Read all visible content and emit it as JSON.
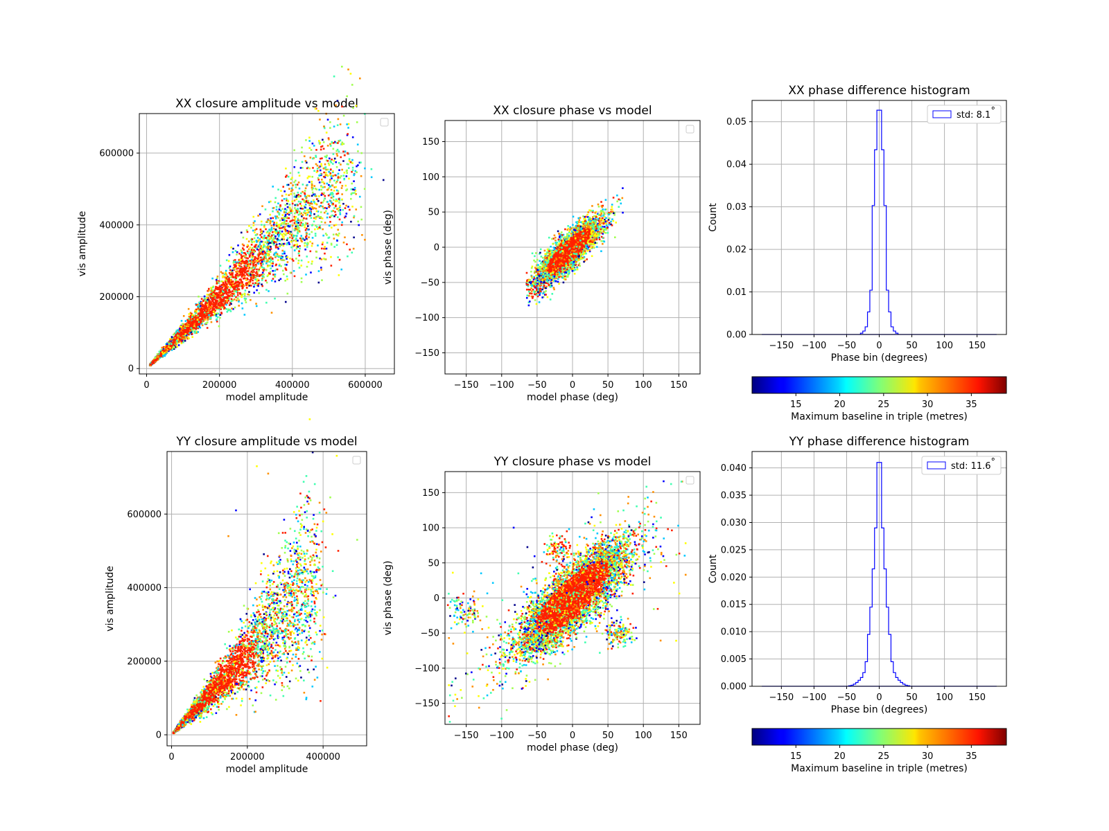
{
  "figure": {
    "colormap": "jet",
    "background": "#ffffff",
    "point_colors": [
      "#00008b",
      "#0000ff",
      "#00c8ff",
      "#40ffb0",
      "#a0ff50",
      "#ffff00",
      "#ff9000",
      "#ff2000"
    ],
    "hist_color": "#0000ff",
    "grid": true
  },
  "chart_data": [
    {
      "id": "xx-amp",
      "type": "scatter",
      "title": "XX closure amplitude vs model",
      "xlabel": "model amplitude",
      "ylabel": "vis amplitude",
      "xlim": [
        -20000,
        680000
      ],
      "ylim": [
        -15000,
        710000
      ],
      "xticks": [
        0,
        200000,
        400000,
        600000
      ],
      "xtick_labels": [
        "0",
        "200000",
        "400000",
        "600000"
      ],
      "yticks": [
        0,
        200000,
        400000,
        600000
      ],
      "ytick_labels": [
        "0",
        "200000",
        "400000",
        "600000"
      ],
      "legend": "top-right (empty)",
      "point_cloud": {
        "trend_slope": 1.0,
        "x_range": [
          10000,
          560000
        ],
        "n_points": 4200,
        "spread_fraction": 0.16,
        "outliers": [
          [
            550000,
            680000
          ],
          [
            580000,
            605000
          ],
          [
            590000,
            600000
          ],
          [
            650000,
            525000
          ],
          [
            590000,
            415000
          ],
          [
            520000,
            400000
          ]
        ]
      }
    },
    {
      "id": "xx-phase",
      "type": "scatter",
      "title": "XX closure phase vs model",
      "xlabel": "model phase (deg)",
      "ylabel": "vis phase (deg)",
      "xlim": [
        -180,
        180
      ],
      "ylim": [
        -180,
        180
      ],
      "xticks": [
        -150,
        -100,
        -50,
        0,
        50,
        100,
        150
      ],
      "xtick_labels": [
        "−150",
        "−100",
        "−50",
        "0",
        "50",
        "100",
        "150"
      ],
      "yticks": [
        -150,
        -100,
        -50,
        0,
        50,
        100,
        150
      ],
      "ytick_labels": [
        "−150",
        "−100",
        "−50",
        "0",
        "50",
        "100",
        "150"
      ],
      "legend": "top-right (empty)",
      "point_cloud": {
        "center": [
          -5,
          -5
        ],
        "x_range": [
          -65,
          75
        ],
        "correlation": 0.85,
        "sigma": 24,
        "n_points": 3600
      }
    },
    {
      "id": "xx-hist",
      "type": "histogram",
      "title": "XX phase difference histogram",
      "xlabel": "Phase bin (degrees)",
      "ylabel": "Count",
      "xlim": [
        -195,
        195
      ],
      "ylim": [
        0,
        0.055
      ],
      "xticks": [
        -150,
        -100,
        -50,
        0,
        50,
        100,
        150
      ],
      "xtick_labels": [
        "−150",
        "−100",
        "−50",
        "0",
        "50",
        "100",
        "150"
      ],
      "yticks": [
        0,
        0.01,
        0.02,
        0.03,
        0.04,
        0.05
      ],
      "ytick_labels": [
        "0.00",
        "0.01",
        "0.02",
        "0.03",
        "0.04",
        "0.05"
      ],
      "legend_label": "std: 8.1$^\\circ$",
      "legend_text": "std: 8.1",
      "legend_position": "top-right",
      "bin_width": 3.6,
      "bin_centers": [
        -27,
        -23.4,
        -19.8,
        -16.2,
        -12.6,
        -9,
        -5.4,
        -1.8,
        1.8,
        5.4,
        9,
        12.6,
        16.2,
        19.8,
        23.4,
        27
      ],
      "values": [
        0.0003,
        0.0008,
        0.0018,
        0.0053,
        0.0104,
        0.0303,
        0.0434,
        0.0527,
        0.0527,
        0.0434,
        0.0303,
        0.0104,
        0.0053,
        0.0018,
        0.0008,
        0.0003
      ]
    },
    {
      "id": "yy-amp",
      "type": "scatter",
      "title": "YY closure amplitude vs model",
      "xlabel": "model amplitude",
      "ylabel": "vis amplitude",
      "xlim": [
        -12000,
        515000
      ],
      "ylim": [
        -30000,
        770000
      ],
      "xticks": [
        0,
        200000,
        400000
      ],
      "xtick_labels": [
        "0",
        "200000",
        "400000"
      ],
      "yticks": [
        0,
        200000,
        400000,
        600000
      ],
      "ytick_labels": [
        "0",
        "200000",
        "400000",
        "600000"
      ],
      "legend": "top-right (empty)",
      "point_cloud": {
        "trend_slope": 1.1,
        "x_range": [
          5000,
          390000
        ],
        "n_points": 4200,
        "spread_fraction": 0.25,
        "outliers": [
          [
            225000,
            730000
          ],
          [
            255000,
            710000
          ],
          [
            170000,
            610000
          ],
          [
            400000,
            580000
          ],
          [
            490000,
            530000
          ],
          [
            150000,
            540000
          ],
          [
            440000,
            500000
          ]
        ]
      }
    },
    {
      "id": "yy-phase",
      "type": "scatter",
      "title": "YY closure phase vs model",
      "xlabel": "model phase (deg)",
      "ylabel": "vis phase (deg)",
      "xlim": [
        -180,
        180
      ],
      "ylim": [
        -180,
        180
      ],
      "xticks": [
        -150,
        -100,
        -50,
        0,
        50,
        100,
        150
      ],
      "xtick_labels": [
        "−150",
        "−100",
        "−50",
        "0",
        "50",
        "100",
        "150"
      ],
      "yticks": [
        -150,
        -100,
        -50,
        0,
        50,
        100,
        150
      ],
      "ytick_labels": [
        "−150",
        "−100",
        "−50",
        "0",
        "50",
        "100",
        "150"
      ],
      "legend": "top-right (empty)",
      "point_cloud": {
        "center": [
          0,
          0
        ],
        "x_range": [
          -175,
          160
        ],
        "correlation": 0.8,
        "sigma": 40,
        "n_points": 5000,
        "clusters": [
          [
            -20,
            70
          ],
          [
            -150,
            -20
          ],
          [
            65,
            -50
          ],
          [
            -45,
            -60
          ],
          [
            50,
            60
          ]
        ]
      }
    },
    {
      "id": "yy-hist",
      "type": "histogram",
      "title": "YY phase difference histogram",
      "xlabel": "Phase bin (degrees)",
      "ylabel": "Count",
      "xlim": [
        -195,
        195
      ],
      "ylim": [
        0,
        0.043
      ],
      "xticks": [
        -150,
        -100,
        -50,
        0,
        50,
        100,
        150
      ],
      "xtick_labels": [
        "−150",
        "−100",
        "−50",
        "0",
        "50",
        "100",
        "150"
      ],
      "yticks": [
        0,
        0.005,
        0.01,
        0.015,
        0.02,
        0.025,
        0.03,
        0.035,
        0.04
      ],
      "ytick_labels": [
        "0.000",
        "0.005",
        "0.010",
        "0.015",
        "0.020",
        "0.025",
        "0.030",
        "0.035",
        "0.040"
      ],
      "legend_label": "std: 11.6$^\\circ$",
      "legend_text": "std: 11.6",
      "legend_position": "top-right",
      "bin_width": 3.6,
      "bin_centers": [
        -45,
        -41.4,
        -37.8,
        -34.2,
        -30.6,
        -27,
        -23.4,
        -19.8,
        -16.2,
        -12.6,
        -9,
        -5.4,
        -1.8,
        1.8,
        5.4,
        9,
        12.6,
        16.2,
        19.8,
        23.4,
        27,
        30.6,
        34.2,
        37.8,
        41.4,
        45
      ],
      "values": [
        0.0001,
        0.0002,
        0.0004,
        0.0007,
        0.0011,
        0.0016,
        0.0025,
        0.0045,
        0.0095,
        0.0145,
        0.0215,
        0.029,
        0.041,
        0.041,
        0.029,
        0.0215,
        0.0145,
        0.0095,
        0.0045,
        0.0025,
        0.0016,
        0.0011,
        0.0007,
        0.0004,
        0.0002,
        0.0001
      ]
    },
    {
      "id": "cbar-top",
      "type": "colorbar",
      "label": "Maximum baseline in triple (metres)",
      "range": [
        10,
        39
      ],
      "ticks": [
        15,
        20,
        25,
        30,
        35
      ],
      "tick_labels": [
        "15",
        "20",
        "25",
        "30",
        "35"
      ]
    },
    {
      "id": "cbar-bottom",
      "type": "colorbar",
      "label": "Maximum baseline in triple (metres)",
      "range": [
        10,
        39
      ],
      "ticks": [
        15,
        20,
        25,
        30,
        35
      ],
      "tick_labels": [
        "15",
        "20",
        "25",
        "30",
        "35"
      ]
    }
  ]
}
